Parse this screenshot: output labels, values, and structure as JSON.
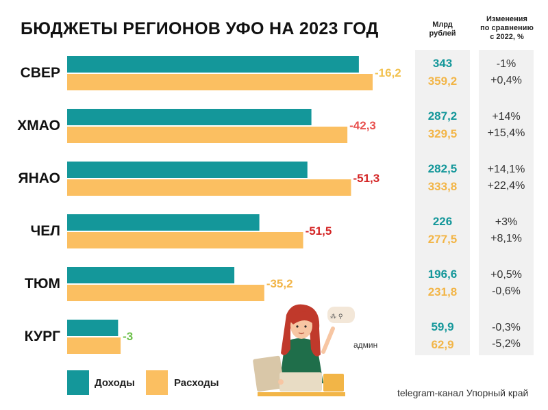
{
  "title": "БЮДЖЕТЫ РЕГИОНОВ УФО НА 2023 ГОД",
  "columns": {
    "amount_header": [
      "Млрд",
      "рублей"
    ],
    "change_header": [
      "Изменения",
      "по сравнению",
      "с 2022, %"
    ]
  },
  "chart_data": {
    "type": "bar",
    "orientation": "horizontal",
    "categories": [
      "СВЕР",
      "ХМАО",
      "ЯНАО",
      "ЧЕЛ",
      "ТЮМ",
      "КУРГ"
    ],
    "series": [
      {
        "name": "Доходы",
        "values": [
          343,
          287.2,
          282.5,
          226,
          196.6,
          59.9
        ],
        "color": "#14979a"
      },
      {
        "name": "Расходы",
        "values": [
          359.2,
          329.5,
          333.8,
          277.5,
          231.8,
          62.9
        ],
        "color": "#fbbf61"
      }
    ],
    "deficit_labels": [
      "-16,2",
      "-42,3",
      "-51,3",
      "-51,5",
      "-35,2",
      "-3"
    ],
    "deficit_colors": [
      "#f2c14e",
      "#e8504e",
      "#d42424",
      "#d42424",
      "#f2b547",
      "#6cc04a"
    ],
    "income_labels": [
      "343",
      "287,2",
      "282,5",
      "226",
      "196,6",
      "59,9"
    ],
    "expense_labels": [
      "359,2",
      "329,5",
      "333,8",
      "277,5",
      "231,8",
      "62,9"
    ],
    "income_change": [
      "-1%",
      "+14%",
      "+14,1%",
      "+3%",
      "+0,5%",
      "-0,3%"
    ],
    "expense_change": [
      "+0,4%",
      "+15,4%",
      "+22,4%",
      "+8,1%",
      "-0,6%",
      "-5,2%"
    ],
    "xlim": [
      0,
      400
    ]
  },
  "legend": [
    {
      "label": "Доходы",
      "color": "#14979a"
    },
    {
      "label": "Расходы",
      "color": "#fbbf61"
    }
  ],
  "illustration": {
    "caption": "админ"
  },
  "footer": "telegram-канал Упорный край"
}
